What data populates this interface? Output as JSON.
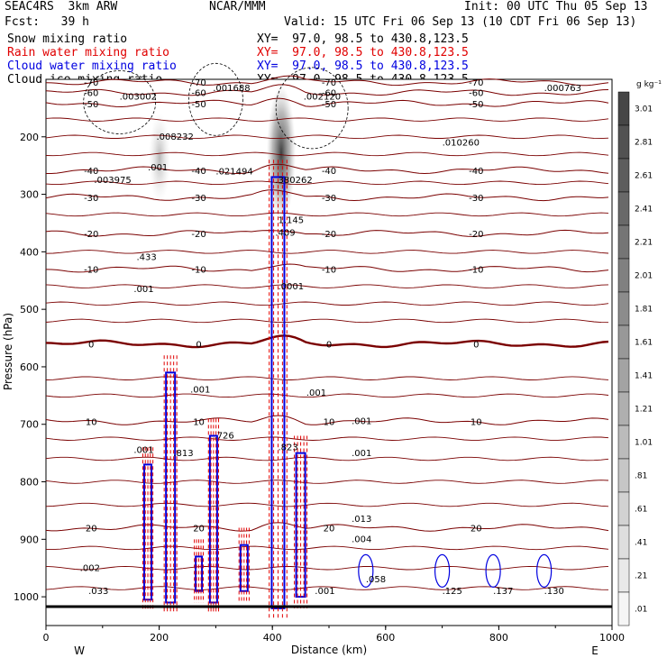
{
  "header": {
    "model": "SEAC4RS  3km ARW",
    "org": "NCAR/MMM",
    "init": "Init: 00 UTC Thu 05 Sep 13",
    "fcst": "Fcst:   39 h",
    "valid": "Valid: 15 UTC Fri 06 Sep 13 (10 CDT Fri 06 Sep 13)"
  },
  "legend": [
    {
      "name": "Snow mixing ratio",
      "xy": "XY=  97.0, 98.5 to 430.8,123.5",
      "color": "#000000"
    },
    {
      "name": "Rain water mixing ratio",
      "xy": "XY=  97.0, 98.5 to 430.8,123.5",
      "color": "#e00000"
    },
    {
      "name": "Cloud water mixing ratio",
      "xy": "XY=  97.0, 98.5 to 430.8,123.5",
      "color": "#0000e0"
    },
    {
      "name": "Cloud ice mixing ratio",
      "xy": "XY=  97.0, 98.5 to 430.8,123.5",
      "color": "#000000"
    }
  ],
  "chart_data": {
    "type": "line",
    "xlabel": "Distance (km)",
    "ylabel": "Pressure (hPa)",
    "x_ticks": [
      "0",
      "200",
      "400",
      "600",
      "800",
      "1000"
    ],
    "y_ticks": [
      "200",
      "300",
      "400",
      "500",
      "600",
      "700",
      "800",
      "900",
      "1000"
    ],
    "xlim": [
      0,
      1000
    ],
    "ylim": [
      1050,
      100
    ],
    "side_labels": {
      "west": "W",
      "east": "E"
    },
    "temperature_isotherms": [
      {
        "value": "-70",
        "p": 105
      },
      {
        "value": "-60",
        "p": 123
      },
      {
        "value": "-50",
        "p": 142
      },
      {
        "value": "-40",
        "p": 258
      },
      {
        "value": "-30",
        "p": 305
      },
      {
        "value": "-20",
        "p": 368
      },
      {
        "value": "-10",
        "p": 430
      },
      {
        "value": "0",
        "p": 560
      },
      {
        "value": "10",
        "p": 695
      },
      {
        "value": "20",
        "p": 880
      }
    ],
    "max_labels": [
      {
        "text": ".003002",
        "x": 130,
        "p": 135
      },
      {
        "text": ".001688",
        "x": 295,
        "p": 120
      },
      {
        "text": ".002120",
        "x": 455,
        "p": 135
      },
      {
        "text": ".000763",
        "x": 880,
        "p": 120
      },
      {
        "text": ".008232",
        "x": 195,
        "p": 205
      },
      {
        "text": ".021494",
        "x": 300,
        "p": 265
      },
      {
        "text": ".380262",
        "x": 405,
        "p": 280
      },
      {
        "text": ".010260",
        "x": 700,
        "p": 215
      },
      {
        "text": ".003975",
        "x": 85,
        "p": 280
      },
      {
        "text": ".001",
        "x": 180,
        "p": 258
      },
      {
        "text": "1.145",
        "x": 410,
        "p": 350
      },
      {
        "text": ".409",
        "x": 405,
        "p": 372
      },
      {
        "text": ".433",
        "x": 160,
        "p": 414
      },
      {
        "text": ".001",
        "x": 155,
        "p": 470
      },
      {
        "text": ".0001",
        "x": 410,
        "p": 465
      },
      {
        "text": ".001",
        "x": 255,
        "p": 645
      },
      {
        "text": ".001",
        "x": 460,
        "p": 650
      },
      {
        "text": ".001",
        "x": 540,
        "p": 700
      },
      {
        "text": ".726",
        "x": 297,
        "p": 725
      },
      {
        "text": ".813",
        "x": 225,
        "p": 755
      },
      {
        "text": ".823",
        "x": 410,
        "p": 745
      },
      {
        "text": ".001",
        "x": 155,
        "p": 750
      },
      {
        "text": ".001",
        "x": 540,
        "p": 755
      },
      {
        "text": ".013",
        "x": 540,
        "p": 870
      },
      {
        "text": ".004",
        "x": 540,
        "p": 905
      },
      {
        "text": ".058",
        "x": 565,
        "p": 975
      },
      {
        "text": ".125",
        "x": 700,
        "p": 995
      },
      {
        "text": ".137",
        "x": 790,
        "p": 995
      },
      {
        "text": ".130",
        "x": 880,
        "p": 995
      },
      {
        "text": ".033",
        "x": 75,
        "p": 995
      },
      {
        "text": ".002",
        "x": 60,
        "p": 955
      },
      {
        "text": ".001",
        "x": 475,
        "p": 995
      }
    ],
    "colorbar": {
      "unit": "g kg⁻¹",
      "ticks": [
        "3.01",
        "2.81",
        "2.61",
        "2.41",
        "2.21",
        "2.01",
        "1.81",
        "1.61",
        "1.41",
        "1.21",
        "1.01",
        ".81",
        ".61",
        ".41",
        ".21",
        ".01"
      ]
    },
    "colors": {
      "isotherm": "#7a0000",
      "rain": "#e00000",
      "cloud_water": "#0000e0",
      "ice": "#000000"
    }
  }
}
